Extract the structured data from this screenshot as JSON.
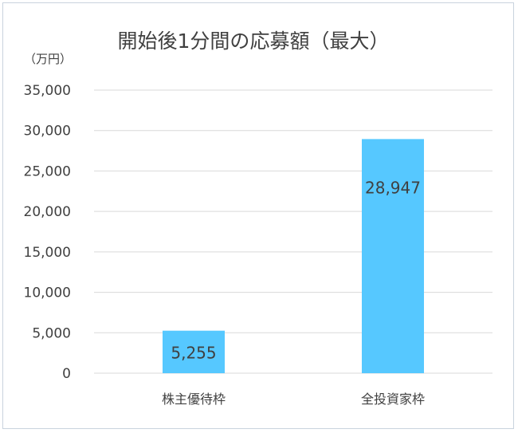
{
  "chart_data": {
    "type": "bar",
    "title": "開始後1分間の応募額（最大）",
    "unit_label": "（万円）",
    "categories": [
      "株主優待枠",
      "全投資家枠"
    ],
    "values": [
      5255,
      28947
    ],
    "value_labels": [
      "5,255",
      "28,947"
    ],
    "yticks": [
      "0",
      "5,000",
      "10,000",
      "15,000",
      "20,000",
      "25,000",
      "30,000",
      "35,000"
    ],
    "ylim": [
      0,
      35000
    ],
    "grid": true,
    "legend": "none",
    "bar_color": "#56c8ff"
  }
}
